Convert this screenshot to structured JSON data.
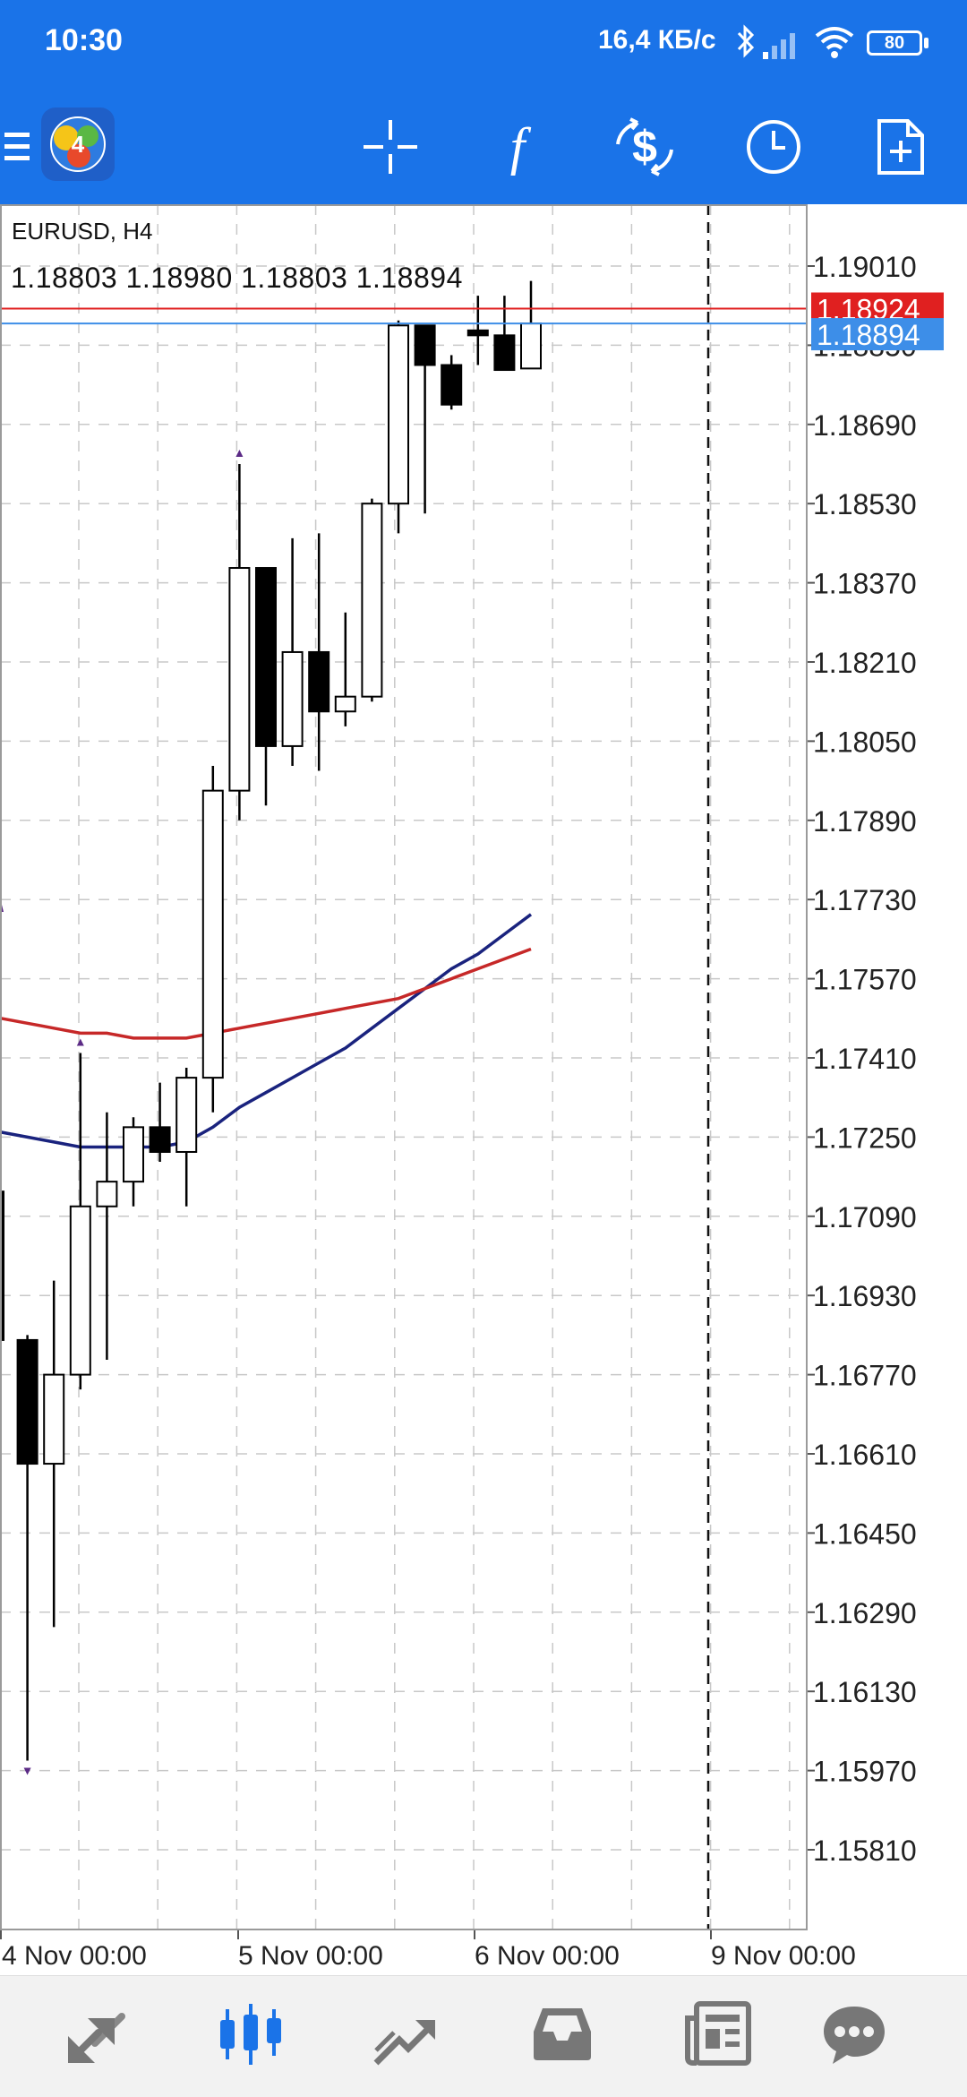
{
  "status_bar": {
    "time": "10:30",
    "network_speed": "16,4 КБ/с",
    "battery": "80",
    "icons": [
      "bluetooth-icon",
      "signal-icon",
      "wifi-icon",
      "battery-icon"
    ]
  },
  "toolbar": {
    "icons": [
      "menu-icon",
      "metatrader-logo-icon",
      "crosshair-icon",
      "indicators-f-icon",
      "trade-dollar-icon",
      "timeframe-clock-icon",
      "new-order-icon"
    ]
  },
  "chart": {
    "symbol_label": "EURUSD, H4",
    "ohlc_label": "1.18803 1.18980 1.18803 1.18894",
    "bid_label": "1.18924",
    "ask_label": "1.18894",
    "bid_color": "#e02020",
    "ask_color": "#3d8ee8",
    "price_ticks": [
      "1.19010",
      "1.18850",
      "1.18690",
      "1.18530",
      "1.18370",
      "1.18210",
      "1.18050",
      "1.17890",
      "1.17730",
      "1.17570",
      "1.17410",
      "1.17250",
      "1.17090",
      "1.16930",
      "1.16770",
      "1.16610",
      "1.16450",
      "1.16290",
      "1.16130",
      "1.15970",
      "1.15810"
    ],
    "time_labels": [
      "4 Nov 00:00",
      "5 Nov 00:00",
      "6 Nov 00:00",
      "9 Nov 00:00"
    ]
  },
  "chart_data": {
    "type": "candlestick",
    "symbol": "EURUSD",
    "timeframe": "H4",
    "ylim": [
      1.15715,
      1.19155
    ],
    "candles": [
      {
        "o": 1.1714,
        "h": 1.1714,
        "l": 1.1664,
        "c": 1.1684
      },
      {
        "o": 1.1684,
        "h": 1.1685,
        "l": 1.1599,
        "c": 1.1659
      },
      {
        "o": 1.1659,
        "h": 1.1696,
        "l": 1.1626,
        "c": 1.1677
      },
      {
        "o": 1.1677,
        "h": 1.1742,
        "l": 1.1674,
        "c": 1.1711
      },
      {
        "o": 1.1711,
        "h": 1.173,
        "l": 1.168,
        "c": 1.1716
      },
      {
        "o": 1.1716,
        "h": 1.1729,
        "l": 1.1711,
        "c": 1.1727
      },
      {
        "o": 1.1727,
        "h": 1.1736,
        "l": 1.172,
        "c": 1.1722
      },
      {
        "o": 1.1722,
        "h": 1.1739,
        "l": 1.1711,
        "c": 1.1737
      },
      {
        "o": 1.1737,
        "h": 1.18,
        "l": 1.173,
        "c": 1.1795
      },
      {
        "o": 1.1795,
        "h": 1.1861,
        "l": 1.1789,
        "c": 1.184
      },
      {
        "o": 1.184,
        "h": 1.184,
        "l": 1.1792,
        "c": 1.1804
      },
      {
        "o": 1.1804,
        "h": 1.1846,
        "l": 1.18,
        "c": 1.1823
      },
      {
        "o": 1.1823,
        "h": 1.1847,
        "l": 1.1799,
        "c": 1.1811
      },
      {
        "o": 1.1811,
        "h": 1.1831,
        "l": 1.1808,
        "c": 1.1814
      },
      {
        "o": 1.1814,
        "h": 1.1854,
        "l": 1.1813,
        "c": 1.1853
      },
      {
        "o": 1.1853,
        "h": 1.189,
        "l": 1.1847,
        "c": 1.1889
      },
      {
        "o": 1.1889,
        "h": 1.1889,
        "l": 1.1851,
        "c": 1.1881
      },
      {
        "o": 1.1881,
        "h": 1.1883,
        "l": 1.1872,
        "c": 1.1873
      },
      {
        "o": 1.1888,
        "h": 1.1895,
        "l": 1.1881,
        "c": 1.1887
      },
      {
        "o": 1.1887,
        "h": 1.1895,
        "l": 1.188,
        "c": 1.188
      },
      {
        "o": 1.18803,
        "h": 1.1898,
        "l": 1.18803,
        "c": 1.18894
      }
    ],
    "moving_averages": [
      {
        "color": "#1a237e",
        "values": [
          1.1726,
          1.1725,
          1.1724,
          1.1723,
          1.1723,
          1.1723,
          1.1723,
          1.1724,
          1.1727,
          1.1731,
          1.1734,
          1.1737,
          1.174,
          1.1743,
          1.1747,
          1.1751,
          1.1755,
          1.1759,
          1.1762,
          1.1766,
          1.177
        ]
      },
      {
        "color": "#c62828",
        "values": [
          1.1749,
          1.1748,
          1.1747,
          1.1746,
          1.1746,
          1.1745,
          1.1745,
          1.1745,
          1.1746,
          1.1747,
          1.1748,
          1.1749,
          1.175,
          1.1751,
          1.1752,
          1.1753,
          1.1755,
          1.1757,
          1.1759,
          1.1761,
          1.1763
        ]
      }
    ],
    "fractal_markers": [
      {
        "candle": 1,
        "price": 1.1599,
        "direction": "down"
      },
      {
        "candle": 3,
        "price": 1.1742,
        "direction": "up"
      },
      {
        "candle": 9,
        "price": 1.1861,
        "direction": "up"
      }
    ],
    "time_labels": [
      "4 Nov 00:00",
      "5 Nov 00:00",
      "6 Nov 00:00",
      "9 Nov 00:00"
    ],
    "bid": 1.18924,
    "ask": 1.18894,
    "grid": true,
    "period_separator": "9 Nov 00:00"
  },
  "bottom_nav": {
    "items": [
      {
        "name": "quotes",
        "icon": "quotes-arrows-icon",
        "active": false
      },
      {
        "name": "chart",
        "icon": "candles-chart-icon",
        "active": true
      },
      {
        "name": "trade",
        "icon": "trade-trend-icon",
        "active": false
      },
      {
        "name": "history",
        "icon": "history-inbox-icon",
        "active": false
      },
      {
        "name": "news",
        "icon": "news-icon",
        "active": false
      },
      {
        "name": "messages",
        "icon": "chat-icon",
        "active": false
      }
    ],
    "active_color": "#1a73e8",
    "inactive_color": "#777777"
  }
}
